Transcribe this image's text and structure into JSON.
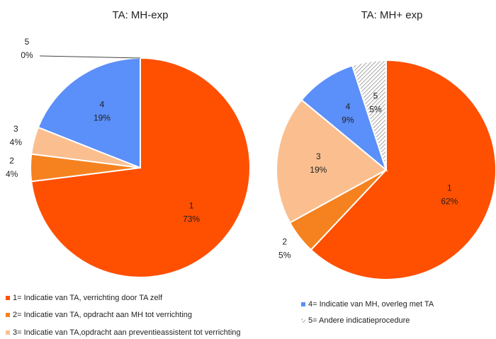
{
  "chart_data": [
    {
      "type": "pie",
      "title": "TA: MH-exp",
      "categories": [
        "1",
        "2",
        "3",
        "4",
        "5"
      ],
      "values": [
        73,
        4,
        4,
        19,
        0
      ],
      "value_labels": [
        "73%",
        "4%",
        "4%",
        "19%",
        "0%"
      ],
      "colors": [
        "#ff4f00",
        "#f5821f",
        "#fbbf8f",
        "#5b8ff9",
        "#bfbfbf"
      ],
      "patterns": [
        null,
        null,
        null,
        null,
        "hatch"
      ]
    },
    {
      "type": "pie",
      "title": "TA: MH+ exp",
      "categories": [
        "1",
        "2",
        "3",
        "4",
        "5"
      ],
      "values": [
        62,
        5,
        19,
        9,
        5
      ],
      "value_labels": [
        "62%",
        "5%",
        "19%",
        "9%",
        "5%"
      ],
      "colors": [
        "#ff4f00",
        "#f5821f",
        "#fbbf8f",
        "#5b8ff9",
        "#bfbfbf"
      ],
      "patterns": [
        null,
        null,
        null,
        null,
        "hatch"
      ]
    }
  ],
  "legend": [
    {
      "label": "1= Indicatie van TA, verrichting door TA zelf",
      "color": "#ff4f00"
    },
    {
      "label": "2= Indicatie van TA, opdracht aan MH tot verrichting",
      "color": "#f5821f"
    },
    {
      "label": "3= Indicatie van TA,opdracht aan preventieassistent tot verrichting",
      "color": "#fbbf8f"
    },
    {
      "label": "4= Indicatie van MH, overleg met TA",
      "color": "#5b8ff9"
    },
    {
      "label": "5= Andere indicatieprocedure",
      "color": "#bfbfbf",
      "pattern": "hatch"
    }
  ]
}
